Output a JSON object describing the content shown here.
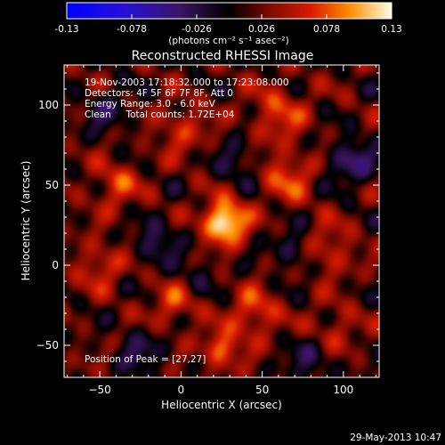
{
  "chart_data": {
    "type": "heatmap",
    "title": "Reconstructed RHESSI Image",
    "xlabel": "Heliocentric X (arcsec)",
    "ylabel": "Heliocentric Y (arcsec)",
    "xlim": [
      -72,
      122
    ],
    "ylim": [
      -70,
      125
    ],
    "x_ticks": [
      -50,
      0,
      50,
      100
    ],
    "y_ticks": [
      -50,
      0,
      50,
      100
    ],
    "colorbar": {
      "min": -0.13,
      "max": 0.13,
      "ticks": [
        -0.13,
        -0.078,
        -0.026,
        0.026,
        0.078,
        0.13
      ],
      "tick_labels": [
        "-0.13",
        "-0.078",
        "-0.026",
        "0.026",
        "0.078",
        "0.13"
      ],
      "unit_label": "(photons cm⁻² s⁻¹ asec⁻²)"
    },
    "info_lines": [
      "19-Nov-2003 17:18:32.000 to 17:23:08.000",
      "Detectors: 4F 5F 6F 7F 8F, Att 0",
      "Energy Range: 3.0 - 6.0 keV",
      "Clean     Total counts: 1.72E+04"
    ],
    "peak_label": "Position of Peak = [27,27]",
    "peak": {
      "x": 27,
      "y": 27,
      "value": 0.13
    },
    "sources": [
      {
        "x": 27,
        "y": 27,
        "value": 0.13,
        "sigma": 9
      },
      {
        "x": 25,
        "y": -52,
        "value": 0.07,
        "sigma": 8
      },
      {
        "x": 45,
        "y": -30,
        "value": 0.06,
        "sigma": 10
      },
      {
        "x": -5,
        "y": -25,
        "value": 0.05,
        "sigma": 9
      },
      {
        "x": 65,
        "y": 55,
        "value": 0.055,
        "sigma": 11
      },
      {
        "x": -40,
        "y": 50,
        "value": 0.05,
        "sigma": 10
      },
      {
        "x": 60,
        "y": 95,
        "value": 0.05,
        "sigma": 12
      },
      {
        "x": -50,
        "y": 0,
        "value": 0.045,
        "sigma": 10
      },
      {
        "x": 90,
        "y": 10,
        "value": 0.045,
        "sigma": 11
      },
      {
        "x": 0,
        "y": 85,
        "value": 0.04,
        "sigma": 11
      },
      {
        "x": 95,
        "y": -40,
        "value": 0.035,
        "sigma": 10
      },
      {
        "x": -15,
        "y": 15,
        "value": -0.05,
        "sigma": 9
      },
      {
        "x": 70,
        "y": 10,
        "value": -0.045,
        "sigma": 9
      },
      {
        "x": 35,
        "y": 65,
        "value": -0.04,
        "sigma": 9
      },
      {
        "x": 105,
        "y": 65,
        "value": -0.06,
        "sigma": 10
      },
      {
        "x": -25,
        "y": -55,
        "value": -0.04,
        "sigma": 10
      },
      {
        "x": 80,
        "y": -60,
        "value": -0.04,
        "sigma": 10
      },
      {
        "x": -45,
        "y": 95,
        "value": -0.035,
        "sigma": 10
      },
      {
        "x": 10,
        "y": -5,
        "value": -0.025,
        "sigma": 8
      }
    ]
  },
  "footer_timestamp": "29-May-2013 10:47"
}
